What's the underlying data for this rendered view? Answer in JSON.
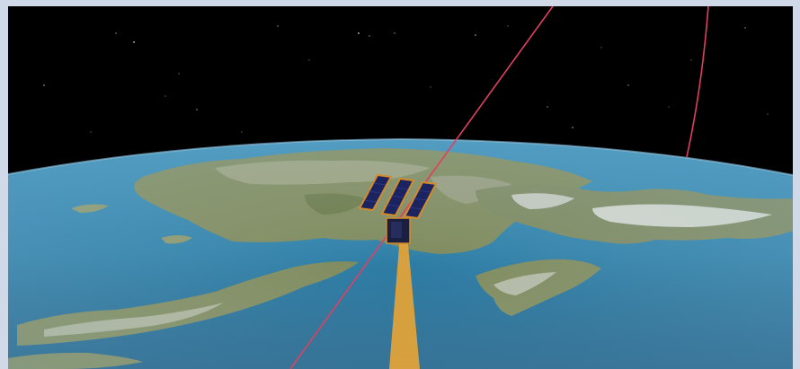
{
  "scene": {
    "colors": {
      "frame": "#cfd9e8",
      "space": "#000000",
      "ocean": "#2e7fa8",
      "land": "#7d8a5d",
      "snow": "#eef2f3",
      "orbit_track": "#e0405f",
      "sensor_beam": "#e0a23a",
      "satellite_body": "#d58b2a",
      "solar_panel": "#1b2460"
    },
    "icons": [
      "satellite-icon"
    ]
  }
}
